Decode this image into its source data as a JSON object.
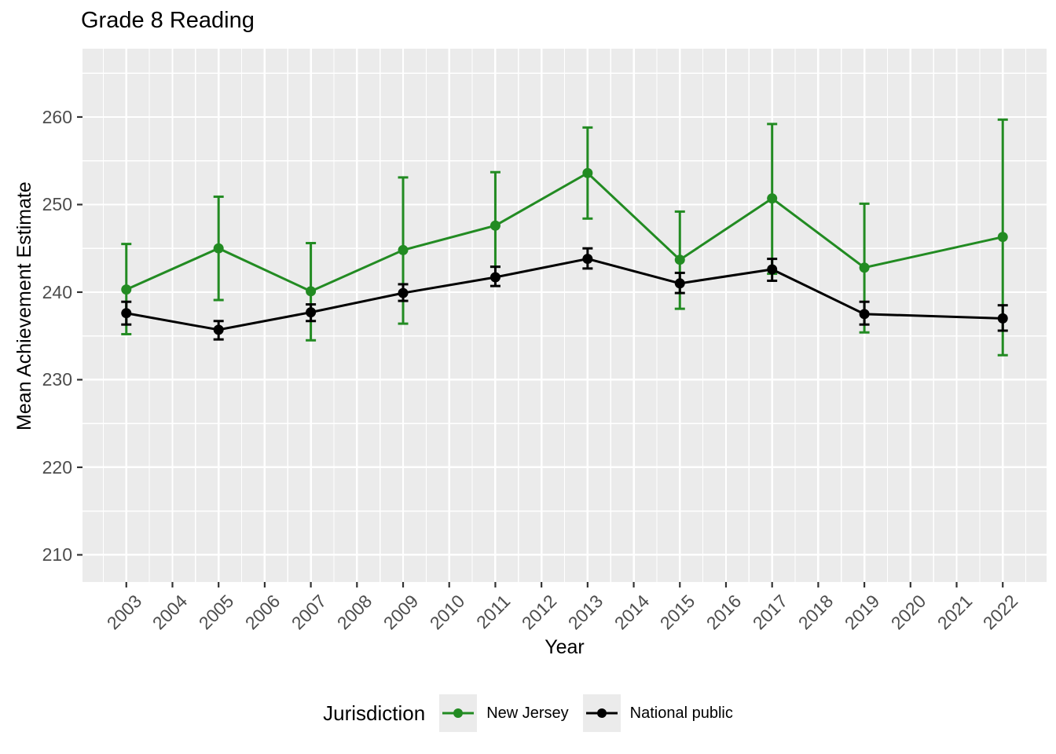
{
  "title": "Grade 8 Reading",
  "axes": {
    "x_label": "Year",
    "y_label": "Mean Achievement Estimate"
  },
  "legend": {
    "title": "Jurisdiction",
    "items": [
      {
        "label": "New Jersey",
        "color": "#228B22"
      },
      {
        "label": "National public",
        "color": "#000000"
      }
    ]
  },
  "colors": {
    "panel_background": "#EBEBEB",
    "gridline": "#FFFFFF",
    "tick_mark": "#333333",
    "tick_text": "#4D4D4D",
    "title_text": "#000000",
    "legend_key_background": "#EBEBEB"
  },
  "chart_data": {
    "type": "line",
    "title": "Grade 8 Reading",
    "xlabel": "Year",
    "ylabel": "Mean Achievement Estimate",
    "legend_title": "Jurisdiction",
    "legend_position": "bottom",
    "grid": true,
    "error_bars": true,
    "x_ticks": [
      2003,
      2004,
      2005,
      2006,
      2007,
      2008,
      2009,
      2010,
      2011,
      2012,
      2013,
      2014,
      2015,
      2016,
      2017,
      2018,
      2019,
      2020,
      2021,
      2022
    ],
    "y_ticks": [
      210,
      220,
      230,
      240,
      250,
      260
    ],
    "y_minor_ticks": [
      215,
      225,
      235,
      245,
      255,
      265
    ],
    "xlim": [
      2002.05,
      2022.95
    ],
    "ylim": [
      206.9,
      267.8
    ],
    "series": [
      {
        "name": "New Jersey",
        "color": "#228B22",
        "x": [
          2003,
          2005,
          2007,
          2009,
          2011,
          2013,
          2015,
          2017,
          2019,
          2022
        ],
        "y": [
          240.3,
          245.0,
          240.1,
          244.8,
          247.6,
          253.6,
          243.7,
          250.7,
          242.8,
          246.3
        ],
        "ci_low": [
          235.2,
          239.1,
          234.5,
          236.4,
          242.9,
          248.4,
          238.1,
          242.1,
          235.4,
          232.8
        ],
        "ci_high": [
          245.5,
          250.9,
          245.6,
          253.1,
          253.7,
          258.8,
          249.2,
          259.2,
          250.1,
          259.7
        ]
      },
      {
        "name": "National public",
        "color": "#000000",
        "x": [
          2003,
          2005,
          2007,
          2009,
          2011,
          2013,
          2015,
          2017,
          2019,
          2022
        ],
        "y": [
          237.6,
          235.7,
          237.7,
          239.9,
          241.7,
          243.8,
          241.0,
          242.6,
          237.5,
          237.0
        ],
        "ci_low": [
          236.3,
          234.6,
          236.7,
          239.0,
          240.7,
          242.7,
          239.9,
          241.3,
          236.3,
          235.6
        ],
        "ci_high": [
          238.9,
          236.7,
          238.6,
          240.9,
          242.9,
          245.0,
          242.2,
          243.8,
          238.9,
          238.5
        ]
      }
    ]
  }
}
